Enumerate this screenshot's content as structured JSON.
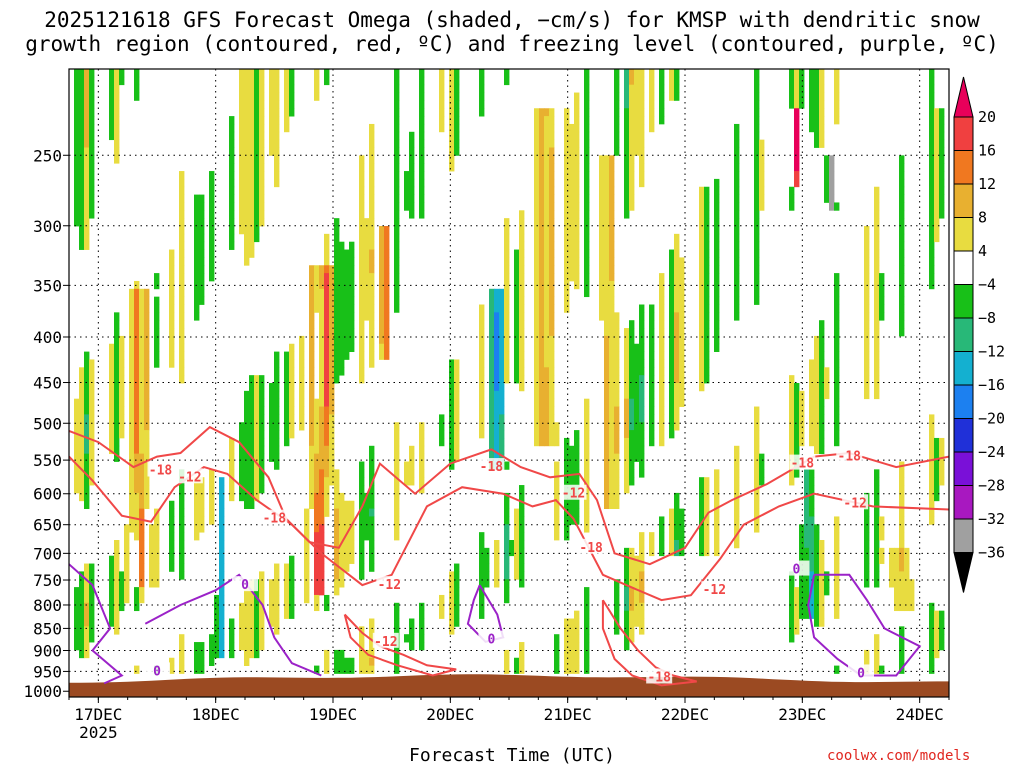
{
  "title_line1": "2025121618 GFS Forecast Omega (shaded, −cm/s) for KMSP with dendritic snow",
  "title_line2": "growth region (contoured, red, ºC) and freezing level (contoured, purple, ºC)",
  "credit": "coolwx.com/models",
  "chart_data": {
    "type": "heatmap",
    "title": "2025121618 GFS Forecast Omega (shaded, −cm/s) for KMSP with dendritic snow growth region (contoured, red, ºC) and freezing level (contoured, purple, ºC)",
    "xlabel": "Forecast Time (UTC)",
    "ylabel": "",
    "x_ticks": [
      {
        "label": "17DEC",
        "sub": "2025",
        "t": 0.5
      },
      {
        "label": "18DEC",
        "sub": "",
        "t": 1.5
      },
      {
        "label": "19DEC",
        "sub": "",
        "t": 2.5
      },
      {
        "label": "20DEC",
        "sub": "",
        "t": 3.5
      },
      {
        "label": "21DEC",
        "sub": "",
        "t": 4.5
      },
      {
        "label": "22DEC",
        "sub": "",
        "t": 5.5
      },
      {
        "label": "23DEC",
        "sub": "",
        "t": 6.5
      },
      {
        "label": "24DEC",
        "sub": "",
        "t": 7.5
      }
    ],
    "x_range_days": [
      0.25,
      7.75
    ],
    "y_ticks": [
      250,
      300,
      350,
      400,
      450,
      500,
      550,
      600,
      650,
      700,
      750,
      800,
      850,
      900,
      950,
      1000
    ],
    "y_range_hpa": [
      200,
      1015
    ],
    "colorbar": {
      "labels": [
        "20",
        "16",
        "12",
        "8",
        "4",
        "−4",
        "−8",
        "−12",
        "−16",
        "−20",
        "−24",
        "−28",
        "−32",
        "−36"
      ],
      "colors": [
        "#e8005a",
        "#f04040",
        "#f07820",
        "#e8b030",
        "#e8dc40",
        "#ffffff",
        "#18c018",
        "#28b878",
        "#14b0d0",
        "#1c80f0",
        "#2030d8",
        "#7a10d8",
        "#a818c0",
        "#a0a0a0",
        "#000000"
      ]
    },
    "ground_pressure_hpa": 970,
    "contours": [
      {
        "label": "-18",
        "color": "#f04848",
        "pos": [
          [
            1.03,
            565
          ],
          [
            3.85,
            560
          ],
          [
            4.7,
            690
          ],
          [
            6.5,
            555
          ],
          [
            6.9,
            545
          ]
        ]
      },
      {
        "label": "-12",
        "color": "#f04848",
        "pos": [
          [
            1.28,
            575
          ],
          [
            4.55,
            600
          ],
          [
            5.75,
            770
          ],
          [
            6.95,
            615
          ],
          [
            2.98,
            760
          ],
          [
            2.95,
            880
          ]
        ]
      },
      {
        "label": "-18",
        "color": "#f04848",
        "pos": [
          [
            2.0,
            640
          ],
          [
            5.28,
            965
          ]
        ]
      },
      {
        "label": "0",
        "color": "#9b22c8",
        "pos": [
          [
            1.75,
            760
          ],
          [
            3.85,
            875
          ],
          [
            6.45,
            730
          ],
          [
            7.0,
            955
          ],
          [
            1.0,
            950
          ]
        ]
      }
    ],
    "omega_features": [
      {
        "t": 0.85,
        "p_top": 350,
        "p_bot": 760,
        "value": 10,
        "width": 0.12
      },
      {
        "t": 2.4,
        "p_top": 330,
        "p_bot": 780,
        "value": 12,
        "width": 0.14
      },
      {
        "t": 2.95,
        "p_top": 300,
        "p_bot": 420,
        "value": 14,
        "width": 0.06
      },
      {
        "t": 4.3,
        "p_top": 220,
        "p_bot": 530,
        "value": 10,
        "width": 0.12
      },
      {
        "t": 4.85,
        "p_top": 250,
        "p_bot": 620,
        "value": 8,
        "width": 0.1
      },
      {
        "t": 6.45,
        "p_top": 220,
        "p_bot": 270,
        "value": 16,
        "width": 0.05
      },
      {
        "t": 6.75,
        "p_top": 250,
        "p_bot": 290,
        "value": -36,
        "width": 0.04
      },
      {
        "t": 1.55,
        "p_top": 580,
        "p_bot": 920,
        "value": -14,
        "width": 0.05
      },
      {
        "t": 3.9,
        "p_top": 350,
        "p_bot": 560,
        "value": -12,
        "width": 0.1
      },
      {
        "t": 6.55,
        "p_top": 560,
        "p_bot": 830,
        "value": -10,
        "width": 0.08
      },
      {
        "t": 7.35,
        "p_top": 690,
        "p_bot": 820,
        "value": 6,
        "width": 0.18
      }
    ]
  }
}
